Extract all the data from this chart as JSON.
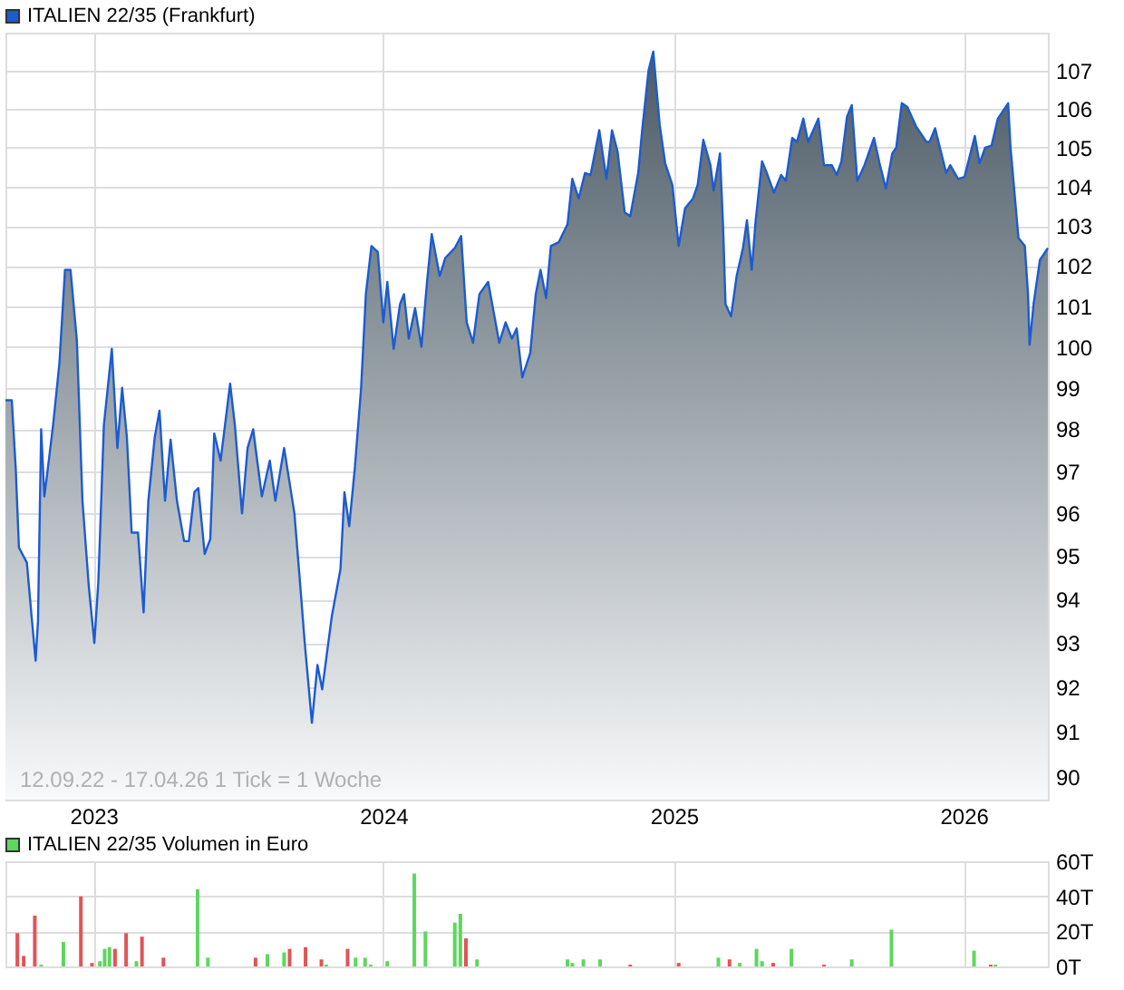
{
  "chart_data": [
    {
      "type": "area",
      "x": [
        "2022-09-12",
        "2022-09-20",
        "2022-09-25",
        "2022-09-29",
        "2022-10-09",
        "2022-10-15",
        "2022-10-20",
        "2022-10-23",
        "2022-10-27",
        "2022-10-31",
        "2022-11-04",
        "2022-11-11",
        "2022-11-19",
        "2022-11-26",
        "2022-12-03",
        "2022-12-11",
        "2022-12-18",
        "2022-12-26",
        "2023-01-02",
        "2023-01-07",
        "2023-01-14",
        "2023-01-24",
        "2023-01-31",
        "2023-02-06",
        "2023-02-12",
        "2023-02-18",
        "2023-02-26",
        "2023-03-05",
        "2023-03-11",
        "2023-03-19",
        "2023-03-25",
        "2023-04-01",
        "2023-04-08",
        "2023-04-16",
        "2023-04-25",
        "2023-05-01",
        "2023-05-08",
        "2023-05-13",
        "2023-05-21",
        "2023-05-28",
        "2023-06-02",
        "2023-06-10",
        "2023-06-22",
        "2023-06-28",
        "2023-07-07",
        "2023-07-14",
        "2023-07-21",
        "2023-08-01",
        "2023-08-11",
        "2023-08-18",
        "2023-08-29",
        "2023-09-11",
        "2023-09-18",
        "2023-09-24",
        "2023-10-03",
        "2023-10-10",
        "2023-10-16",
        "2023-10-28",
        "2023-11-08",
        "2023-11-13",
        "2023-11-19",
        "2023-11-26",
        "2023-12-04",
        "2023-12-10",
        "2023-12-17",
        "2023-12-25",
        "2024-01-01",
        "2024-01-06",
        "2024-01-14",
        "2024-01-22",
        "2024-01-27",
        "2024-02-02",
        "2024-02-10",
        "2024-02-18",
        "2024-02-25",
        "2024-03-02",
        "2024-03-12",
        "2024-03-19",
        "2024-03-31",
        "2024-04-08",
        "2024-04-15",
        "2024-04-23",
        "2024-05-01",
        "2024-05-12",
        "2024-05-26",
        "2024-06-03",
        "2024-06-11",
        "2024-06-17",
        "2024-06-24",
        "2024-07-04",
        "2024-07-11",
        "2024-07-17",
        "2024-07-24",
        "2024-07-30",
        "2024-08-09",
        "2024-08-20",
        "2024-08-26",
        "2024-09-03",
        "2024-09-11",
        "2024-09-18",
        "2024-09-29",
        "2024-10-08",
        "2024-10-15",
        "2024-10-22",
        "2024-10-31",
        "2024-11-07",
        "2024-11-17",
        "2024-11-22",
        "2024-11-30",
        "2024-12-06",
        "2024-12-14",
        "2024-12-21",
        "2024-12-30",
        "2025-01-07",
        "2025-01-15",
        "2025-01-25",
        "2025-01-31",
        "2025-02-07",
        "2025-02-16",
        "2025-02-20",
        "2025-02-28",
        "2025-03-04",
        "2025-03-07",
        "2025-03-14",
        "2025-03-21",
        "2025-03-29",
        "2025-04-03",
        "2025-04-09",
        "2025-04-14",
        "2025-04-22",
        "2025-04-28",
        "2025-05-07",
        "2025-05-16",
        "2025-05-22",
        "2025-05-30",
        "2025-06-05",
        "2025-06-13",
        "2025-06-19",
        "2025-07-02",
        "2025-07-09",
        "2025-07-19",
        "2025-07-25",
        "2025-07-31",
        "2025-08-07",
        "2025-08-13",
        "2025-08-20",
        "2025-08-29",
        "2025-09-10",
        "2025-09-17",
        "2025-09-25",
        "2025-10-03",
        "2025-10-08",
        "2025-10-15",
        "2025-10-22",
        "2025-11-02",
        "2025-11-15",
        "2025-11-19",
        "2025-11-26",
        "2025-12-10",
        "2025-12-15",
        "2025-12-25",
        "2026-01-02",
        "2026-01-15",
        "2026-01-21",
        "2026-01-28",
        "2026-02-05",
        "2026-02-13",
        "2026-02-26",
        "2026-03-01",
        "2026-03-11",
        "2026-03-19",
        "2026-03-23",
        "2026-03-25",
        "2026-03-30",
        "2026-04-07",
        "2026-04-17"
      ],
      "series": [
        {
          "name": "ITALIEN 22/35 (Frankfurt)",
          "color": "#1c5bd0",
          "values": [
            98.7,
            98.7,
            97.05,
            95.2,
            94.85,
            93.6,
            92.6,
            93.5,
            98.0,
            96.4,
            97.0,
            98.1,
            99.6,
            101.9,
            101.9,
            100.15,
            96.3,
            94.3,
            93.0,
            94.4,
            98.1,
            99.95,
            97.55,
            99.0,
            97.8,
            95.55,
            95.55,
            93.7,
            96.3,
            97.8,
            98.45,
            96.3,
            97.75,
            96.3,
            95.35,
            95.35,
            96.5,
            96.6,
            95.05,
            95.4,
            97.9,
            97.25,
            99.1,
            98.1,
            96.0,
            97.55,
            98.0,
            96.4,
            97.25,
            96.3,
            97.55,
            96.0,
            94.4,
            93.0,
            91.2,
            92.5,
            91.95,
            93.6,
            94.7,
            96.5,
            95.7,
            97.05,
            99.0,
            101.3,
            102.5,
            102.35,
            100.6,
            101.6,
            99.95,
            101.05,
            101.3,
            100.2,
            100.95,
            100.0,
            101.6,
            102.8,
            101.75,
            102.2,
            102.45,
            102.75,
            100.6,
            100.1,
            101.3,
            101.6,
            100.1,
            100.6,
            100.2,
            100.45,
            99.25,
            99.85,
            101.3,
            101.9,
            101.2,
            102.5,
            102.6,
            103.05,
            104.2,
            103.7,
            104.35,
            104.3,
            105.45,
            104.2,
            105.45,
            104.9,
            103.35,
            103.25,
            104.35,
            105.45,
            107.0,
            107.5,
            105.6,
            104.6,
            104.05,
            102.5,
            103.45,
            103.7,
            104.05,
            105.2,
            104.55,
            103.9,
            104.85,
            102.95,
            101.05,
            100.75,
            101.75,
            102.45,
            103.15,
            101.9,
            103.15,
            104.65,
            104.35,
            103.85,
            104.3,
            104.15,
            105.25,
            105.15,
            105.75,
            105.15,
            105.75,
            104.55,
            104.55,
            104.3,
            104.65,
            105.8,
            106.1,
            104.15,
            104.55,
            105.25,
            104.6,
            103.95,
            104.85,
            105.0,
            106.15,
            106.05,
            105.55,
            105.15,
            105.15,
            105.5,
            104.35,
            104.55,
            104.2,
            104.25,
            105.3,
            104.6,
            105.0,
            105.05,
            105.75,
            106.15,
            105.0,
            102.7,
            102.5,
            101.3,
            100.05,
            101.05,
            102.15,
            102.45
          ]
        }
      ],
      "xlim": [
        "2022-09-12",
        "2026-04-17"
      ],
      "xticks": [
        "2023",
        "2024",
        "2025",
        "2026"
      ],
      "ylim": [
        89.5,
        108
      ],
      "yticks": [
        90,
        91,
        92,
        93,
        94,
        95,
        96,
        97,
        98,
        99,
        100,
        101,
        102,
        103,
        104,
        105,
        106,
        107
      ],
      "log": true,
      "grid": true,
      "legend": "top left",
      "annotations": [
        "12.09.22 - 17.04.26  1 Tick = 1 Woche"
      ]
    },
    {
      "type": "bar",
      "x": [
        "2022-09-27",
        "2022-10-05",
        "2022-10-19",
        "2022-10-27",
        "2022-11-24",
        "2022-12-16",
        "2022-12-30",
        "2023-01-09",
        "2023-01-15",
        "2023-01-21",
        "2023-01-28",
        "2023-02-11",
        "2023-02-24",
        "2023-03-03",
        "2023-03-30",
        "2023-05-12",
        "2023-05-25",
        "2023-07-24",
        "2023-08-08",
        "2023-08-29",
        "2023-09-05",
        "2023-09-25",
        "2023-10-15",
        "2023-10-21",
        "2023-11-17",
        "2023-11-27",
        "2023-12-09",
        "2023-12-16",
        "2024-01-06",
        "2024-02-09",
        "2024-02-23",
        "2024-03-31",
        "2024-04-07",
        "2024-04-14",
        "2024-04-28",
        "2024-08-20",
        "2024-08-26",
        "2024-09-09",
        "2024-09-30",
        "2024-11-07",
        "2025-01-07",
        "2025-02-26",
        "2025-03-12",
        "2025-03-25",
        "2025-04-15",
        "2025-04-22",
        "2025-05-06",
        "2025-05-29",
        "2025-07-09",
        "2025-08-13",
        "2025-10-02",
        "2026-01-14",
        "2026-02-04",
        "2026-02-10"
      ],
      "series": [
        {
          "name": "ITALIEN 22/35 Volumen in Euro",
          "color": "#5fd65f",
          "values": [
            19,
            6,
            29,
            1,
            14,
            40,
            2,
            3,
            10,
            11,
            10,
            19,
            3,
            17,
            5,
            44,
            5,
            5,
            7,
            8,
            10,
            11,
            4,
            1,
            10,
            5,
            5,
            1,
            3,
            53,
            20,
            25,
            30,
            16,
            4,
            4,
            2,
            4,
            4,
            1,
            2,
            5,
            4,
            2,
            10,
            3,
            2,
            10,
            1,
            4,
            21,
            9,
            1,
            1
          ],
          "colors": [
            "#e05555",
            "#e05555",
            "#e05555",
            "#5fd65f",
            "#5fd65f",
            "#e05555",
            "#e05555",
            "#5fd65f",
            "#5fd65f",
            "#5fd65f",
            "#e05555",
            "#e05555",
            "#5fd65f",
            "#e05555",
            "#e05555",
            "#5fd65f",
            "#5fd65f",
            "#e05555",
            "#5fd65f",
            "#5fd65f",
            "#e05555",
            "#e05555",
            "#e05555",
            "#5fd65f",
            "#e05555",
            "#5fd65f",
            "#5fd65f",
            "#5fd65f",
            "#5fd65f",
            "#5fd65f",
            "#5fd65f",
            "#5fd65f",
            "#5fd65f",
            "#e05555",
            "#5fd65f",
            "#5fd65f",
            "#5fd65f",
            "#5fd65f",
            "#5fd65f",
            "#e05555",
            "#e05555",
            "#5fd65f",
            "#e05555",
            "#5fd65f",
            "#5fd65f",
            "#5fd65f",
            "#e05555",
            "#5fd65f",
            "#e05555",
            "#5fd65f",
            "#5fd65f",
            "#5fd65f",
            "#e05555",
            "#5fd65f"
          ]
        }
      ],
      "xlim": [
        "2022-09-12",
        "2026-04-17"
      ],
      "xticks": [
        "2023",
        "2024",
        "2025",
        "2026"
      ],
      "ylim": [
        0,
        60
      ],
      "yticks": [
        {
          "value": 0,
          "label": "0T"
        },
        {
          "value": 20,
          "label": "20T"
        },
        {
          "value": 40,
          "label": "40T"
        },
        {
          "value": 60,
          "label": "60T"
        }
      ],
      "grid": true,
      "legend": "top left",
      "tick_labels": "y"
    }
  ]
}
